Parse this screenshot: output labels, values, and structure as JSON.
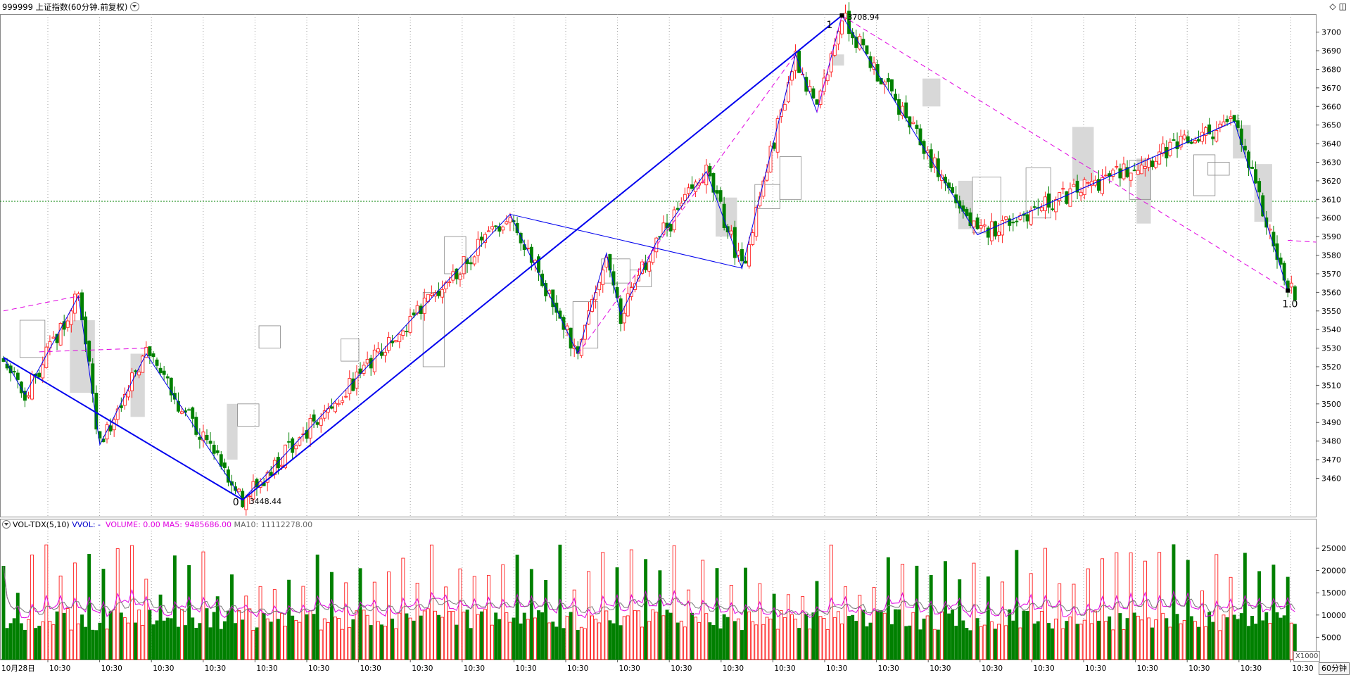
{
  "title": "999999 上证指数(60分钟.前复权)",
  "window_icons": [
    "diamond-icon",
    "panel-icon"
  ],
  "colors": {
    "up": "#ff2020",
    "down": "#008000",
    "wave": "#0000ee",
    "dash": "#e000e0",
    "grid": "#a0a0a0"
  },
  "price_axis": {
    "labels": [
      "3700",
      "3690",
      "3680",
      "3670",
      "3660",
      "3650",
      "3640",
      "3630",
      "3620",
      "3610",
      "3600",
      "3590",
      "3580",
      "3570",
      "3560",
      "3550",
      "3540",
      "3530",
      "3520",
      "3510",
      "3500",
      "3490",
      "3480",
      "3470",
      "3460"
    ]
  },
  "annotations": {
    "high_label": "3708.94",
    "low_label": "3448.44",
    "wave0": "0",
    "wave1": "1",
    "wave10": "1.0"
  },
  "volume_panel": {
    "indicator": "VOL-TDX(5,10)",
    "vvol": "VVOL: -",
    "volume": "VOLUME: 0.00",
    "ma5": "MA5: 9485686.00",
    "ma10": "MA10: 11112278.00",
    "unit": "X1000",
    "axis": [
      "25000",
      "20000",
      "15000",
      "10000",
      "5000"
    ]
  },
  "time_axis": {
    "first": "10月28日",
    "repeat": "10:30"
  },
  "period_button": "60分钟",
  "chart_data": {
    "type": "candlestick",
    "title": "999999 上证指数(60分钟.前复权)",
    "high": 3708.94,
    "low": 3448.44,
    "ylim": [
      3440,
      3715
    ],
    "volume_ylim": [
      0,
      28000
    ],
    "wave_points": [
      [
        0,
        3525
      ],
      [
        6,
        3505
      ],
      [
        21,
        3558
      ],
      [
        27,
        3478
      ],
      [
        40,
        3527
      ],
      [
        67,
        3448.44
      ],
      [
        142,
        3602
      ],
      [
        161,
        3527
      ],
      [
        169,
        3581
      ],
      [
        173,
        3548
      ],
      [
        183,
        3587
      ],
      [
        197,
        3625
      ],
      [
        207,
        3573
      ],
      [
        222,
        3688
      ],
      [
        228,
        3657
      ],
      [
        235,
        3708.94
      ],
      [
        273,
        3591
      ],
      [
        345,
        3652
      ],
      [
        360,
        3561
      ]
    ]
  }
}
